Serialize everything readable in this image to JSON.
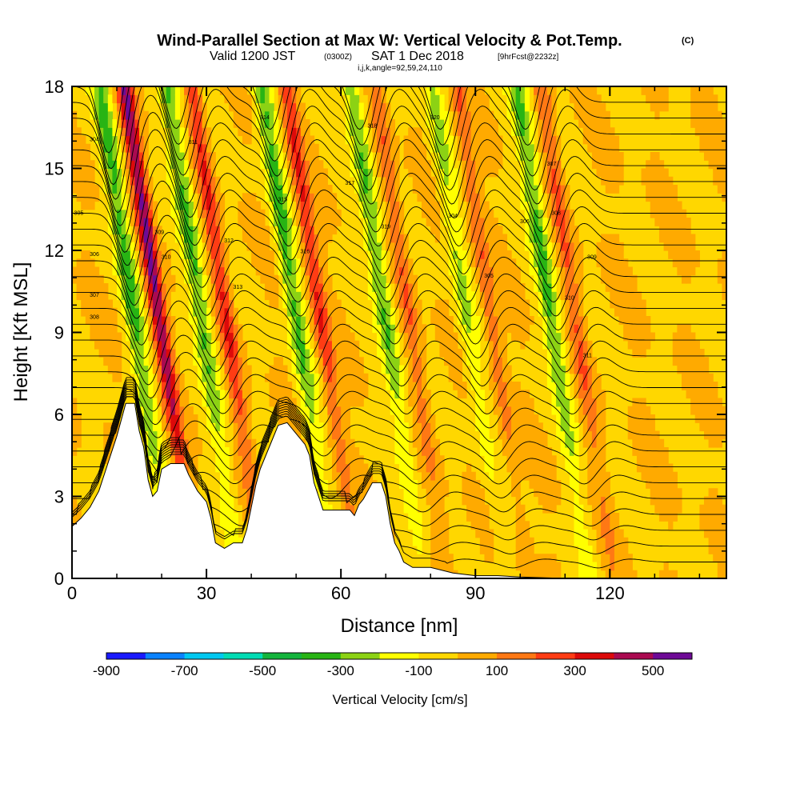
{
  "chart_data": {
    "type": "heatmap",
    "title": "Wind-Parallel Section at Max W: Vertical Velocity & Pot.Temp.",
    "title_mark": "(C)",
    "subtitle": {
      "prefix": "Valid 1200 JST",
      "zulu": "(0300Z)",
      "date": "SAT 1 Dec 2018",
      "forecast": "[9hrFcst@2232z]"
    },
    "params": "i,j,k,angle=92,59,24,110",
    "xlabel": "Distance [nm]",
    "ylabel": "Height [Kft MSL]",
    "xlim": [
      0,
      146
    ],
    "ylim": [
      0,
      18
    ],
    "xticks": [
      "0",
      "30",
      "60",
      "90",
      "120"
    ],
    "yticks": [
      "0",
      "3",
      "6",
      "9",
      "12",
      "15",
      "18"
    ],
    "colorbar": {
      "title": "Vertical Velocity [cm/s]",
      "tick_labels": [
        "-900",
        "-700",
        "-500",
        "-300",
        "-100",
        "100",
        "300",
        "500"
      ],
      "colors": [
        "#1a1aff",
        "#0a82ff",
        "#00c8f0",
        "#00dcb4",
        "#14b43c",
        "#28b414",
        "#8cd214",
        "#ffff00",
        "#ffd700",
        "#ffaa00",
        "#ff7814",
        "#ff3c14",
        "#dc0a0a",
        "#aa0a50",
        "#6e0a96"
      ]
    },
    "waves": [
      {
        "x": 19,
        "updraft": 500,
        "downdraft": -300
      },
      {
        "x": 34,
        "updraft": 300,
        "downdraft": -300
      },
      {
        "x": 55,
        "updraft": 300,
        "downdraft": -300
      },
      {
        "x": 75,
        "updraft": 200,
        "downdraft": -300
      },
      {
        "x": 93,
        "updraft": 200,
        "downdraft": -200
      },
      {
        "x": 112,
        "updraft": 200,
        "downdraft": -300
      }
    ],
    "terrain_kft": [
      [
        0,
        1.9
      ],
      [
        2,
        2.2
      ],
      [
        4,
        2.6
      ],
      [
        6,
        3.2
      ],
      [
        8,
        4.2
      ],
      [
        10,
        5.2
      ],
      [
        12,
        6.4
      ],
      [
        14,
        6.4
      ],
      [
        15,
        5.4
      ],
      [
        16,
        4.8
      ],
      [
        17,
        3.6
      ],
      [
        18,
        3.0
      ],
      [
        19,
        3.2
      ],
      [
        20,
        4.0
      ],
      [
        22,
        4.2
      ],
      [
        25,
        4.2
      ],
      [
        26,
        3.8
      ],
      [
        28,
        3.2
      ],
      [
        30,
        2.8
      ],
      [
        31,
        2.2
      ],
      [
        32,
        1.3
      ],
      [
        34,
        1.1
      ],
      [
        36,
        1.3
      ],
      [
        38,
        1.3
      ],
      [
        39,
        1.8
      ],
      [
        40,
        2.6
      ],
      [
        41,
        3.4
      ],
      [
        42,
        4.0
      ],
      [
        44,
        4.8
      ],
      [
        46,
        5.6
      ],
      [
        48,
        5.7
      ],
      [
        50,
        5.3
      ],
      [
        52,
        4.9
      ],
      [
        53,
        4.5
      ],
      [
        54,
        3.5
      ],
      [
        55,
        3.0
      ],
      [
        56,
        2.5
      ],
      [
        58,
        2.5
      ],
      [
        60,
        2.5
      ],
      [
        62,
        2.5
      ],
      [
        63,
        2.3
      ],
      [
        64,
        2.7
      ],
      [
        65,
        2.9
      ],
      [
        67,
        3.5
      ],
      [
        69,
        3.5
      ],
      [
        70,
        3.0
      ],
      [
        71,
        2.0
      ],
      [
        72,
        1.3
      ],
      [
        73,
        1.0
      ],
      [
        74,
        0.6
      ],
      [
        76,
        0.4
      ],
      [
        80,
        0.4
      ],
      [
        85,
        0.2
      ],
      [
        90,
        0.1
      ],
      [
        95,
        0.1
      ],
      [
        100,
        0.05
      ],
      [
        110,
        0
      ],
      [
        146,
        0
      ]
    ],
    "theta_labels": [
      "304",
      "305",
      "306",
      "307",
      "308",
      "309",
      "310",
      "311",
      "312",
      "313",
      "314",
      "315",
      "316",
      "317",
      "318",
      "319",
      "320"
    ]
  }
}
